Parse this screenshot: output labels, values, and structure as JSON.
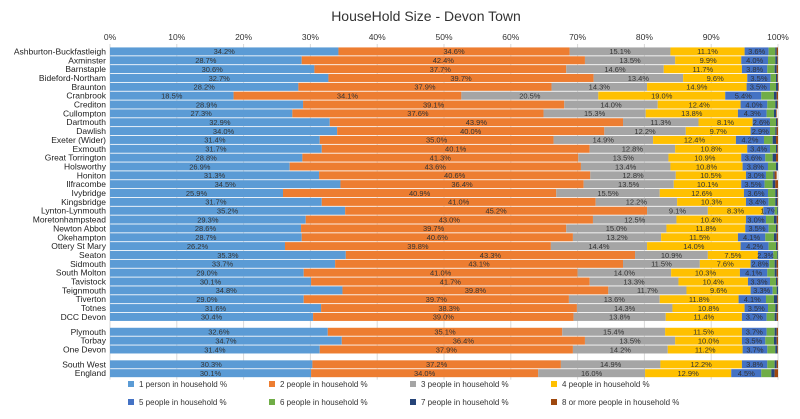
{
  "chart_data": {
    "type": "bar",
    "orientation": "horizontal",
    "stacked": true,
    "percent_axis": true,
    "title": "HouseHold Size - Devon Town",
    "xlabel": "",
    "ylabel": "",
    "xlim": [
      0,
      100
    ],
    "x_ticks": [
      "0%",
      "10%",
      "20%",
      "30%",
      "40%",
      "50%",
      "60%",
      "70%",
      "80%",
      "90%",
      "100%"
    ],
    "grid": "vertical",
    "legend_position": "bottom",
    "groups": [
      [
        "Ashburton-Buckfastleigh",
        "Axminster",
        "Barnstaple",
        "Bideford-Northam",
        "Braunton",
        "Cranbrook",
        "Crediton",
        "Cullompton",
        "Dartmouth",
        "Dawlish",
        "Exeter (Wider)",
        "Exmouth",
        "Great Torrington",
        "Holsworthy",
        "Honiton",
        "Ilfracombe",
        "Ivybridge",
        "Kingsbridge",
        "Lynton-Lynmouth",
        "Moretonhampstead",
        "Newton Abbot",
        "Okehampton",
        "Ottery St Mary",
        "Seaton",
        "Sidmouth",
        "South Molton",
        "Tavistock",
        "Teignmouth",
        "Tiverton",
        "Totnes",
        "DCC Devon"
      ],
      [
        "Plymouth",
        "Torbay",
        "One Devon"
      ],
      [
        "South West",
        "England"
      ]
    ],
    "categories": [
      "Ashburton-Buckfastleigh",
      "Axminster",
      "Barnstaple",
      "Bideford-Northam",
      "Braunton",
      "Cranbrook",
      "Crediton",
      "Cullompton",
      "Dartmouth",
      "Dawlish",
      "Exeter (Wider)",
      "Exmouth",
      "Great Torrington",
      "Holsworthy",
      "Honiton",
      "Ilfracombe",
      "Ivybridge",
      "Kingsbridge",
      "Lynton-Lynmouth",
      "Moretonhampstead",
      "Newton Abbot",
      "Okehampton",
      "Ottery St Mary",
      "Seaton",
      "Sidmouth",
      "South Molton",
      "Tavistock",
      "Teignmouth",
      "Tiverton",
      "Totnes",
      "DCC Devon",
      "Plymouth",
      "Torbay",
      "One Devon",
      "South West",
      "England"
    ],
    "series": [
      {
        "name": "1 person in household %",
        "color": "#5b9bd5",
        "values": [
          34.2,
          28.7,
          30.6,
          32.7,
          28.2,
          18.5,
          28.9,
          27.3,
          32.9,
          34.0,
          31.4,
          31.7,
          28.8,
          26.9,
          31.3,
          34.5,
          25.9,
          31.7,
          35.2,
          29.3,
          28.6,
          28.7,
          26.2,
          35.3,
          33.7,
          29.0,
          30.1,
          34.8,
          29.0,
          31.6,
          30.4,
          32.6,
          34.7,
          31.4,
          30.3,
          30.1
        ]
      },
      {
        "name": "2 people in household %",
        "color": "#ed7d31",
        "values": [
          34.6,
          42.4,
          37.7,
          39.7,
          37.9,
          34.1,
          39.1,
          37.6,
          43.9,
          40.0,
          35.0,
          40.1,
          41.3,
          43.6,
          40.6,
          36.4,
          40.9,
          41.0,
          45.2,
          43.0,
          39.7,
          40.6,
          39.8,
          43.3,
          43.1,
          41.0,
          41.7,
          39.8,
          39.7,
          38.3,
          39.0,
          35.1,
          36.4,
          37.9,
          37.2,
          34.0
        ]
      },
      {
        "name": "3 people in household %",
        "color": "#a5a5a5",
        "values": [
          15.1,
          13.5,
          14.6,
          13.4,
          14.3,
          20.5,
          14.0,
          15.3,
          11.3,
          12.2,
          14.9,
          12.8,
          13.5,
          13.4,
          12.8,
          13.5,
          15.5,
          12.2,
          9.1,
          12.5,
          15.0,
          13.2,
          14.4,
          10.9,
          11.5,
          14.0,
          13.3,
          11.7,
          13.6,
          14.3,
          13.8,
          15.4,
          13.5,
          14.2,
          14.9,
          16.0
        ]
      },
      {
        "name": "4 people in household %",
        "color": "#ffc000",
        "values": [
          11.1,
          9.9,
          11.7,
          9.6,
          14.9,
          19.0,
          12.4,
          13.8,
          8.1,
          9.7,
          12.4,
          10.8,
          10.9,
          10.8,
          10.5,
          10.1,
          12.6,
          10.3,
          8.3,
          10.4,
          11.8,
          11.5,
          14.0,
          7.5,
          7.6,
          10.3,
          10.4,
          9.6,
          11.8,
          10.8,
          11.4,
          11.5,
          10.0,
          11.2,
          12.2,
          12.9
        ]
      },
      {
        "name": "5 people in household %",
        "color": "#4472c4",
        "values": [
          3.6,
          4.0,
          3.8,
          3.5,
          3.5,
          5.4,
          4.0,
          4.3,
          2.6,
          2.9,
          4.2,
          3.4,
          3.6,
          3.8,
          3.0,
          3.5,
          3.6,
          3.4,
          1.7,
          3.0,
          3.5,
          4.1,
          4.2,
          2.3,
          2.8,
          4.1,
          3.3,
          3.3,
          4.1,
          3.5,
          3.7,
          3.7,
          3.5,
          3.7,
          3.8,
          4.5
        ]
      },
      {
        "name": "6 people in household %",
        "color": "#70ad47",
        "values": [
          1.0,
          1.1,
          1.1,
          0.8,
          0.9,
          1.9,
          1.2,
          1.1,
          0.9,
          0.8,
          1.3,
          0.9,
          1.1,
          1.2,
          1.1,
          1.2,
          1.1,
          1.0,
          0.4,
          1.2,
          1.1,
          1.3,
          1.1,
          0.6,
          0.8,
          1.1,
          0.9,
          0.6,
          1.2,
          1.1,
          1.2,
          1.2,
          1.3,
          1.2,
          1.1,
          1.5
        ]
      },
      {
        "name": "7 people in household %",
        "color": "#264478",
        "values": [
          0.2,
          0.3,
          0.3,
          0.2,
          0.3,
          0.4,
          0.3,
          0.3,
          0.2,
          0.2,
          0.5,
          0.2,
          0.5,
          0.3,
          0.2,
          0.4,
          0.3,
          0.3,
          0.1,
          0.4,
          0.2,
          0.4,
          0.2,
          0.1,
          0.3,
          0.3,
          0.2,
          0.2,
          0.5,
          0.3,
          0.3,
          0.3,
          0.4,
          0.3,
          0.3,
          0.5
        ]
      },
      {
        "name": "8 or more people in household %",
        "color": "#9e480e",
        "values": [
          0.2,
          0.1,
          0.2,
          0.1,
          0.1,
          0.2,
          0.1,
          0.1,
          0.1,
          0.2,
          0.3,
          0.1,
          0.3,
          0.0,
          0.3,
          0.4,
          0.1,
          0.1,
          0.0,
          0.2,
          0.1,
          0.2,
          0.1,
          0.0,
          0.2,
          0.2,
          0.1,
          0.0,
          0.1,
          0.1,
          0.2,
          0.2,
          0.2,
          0.1,
          0.2,
          0.5
        ]
      }
    ]
  }
}
